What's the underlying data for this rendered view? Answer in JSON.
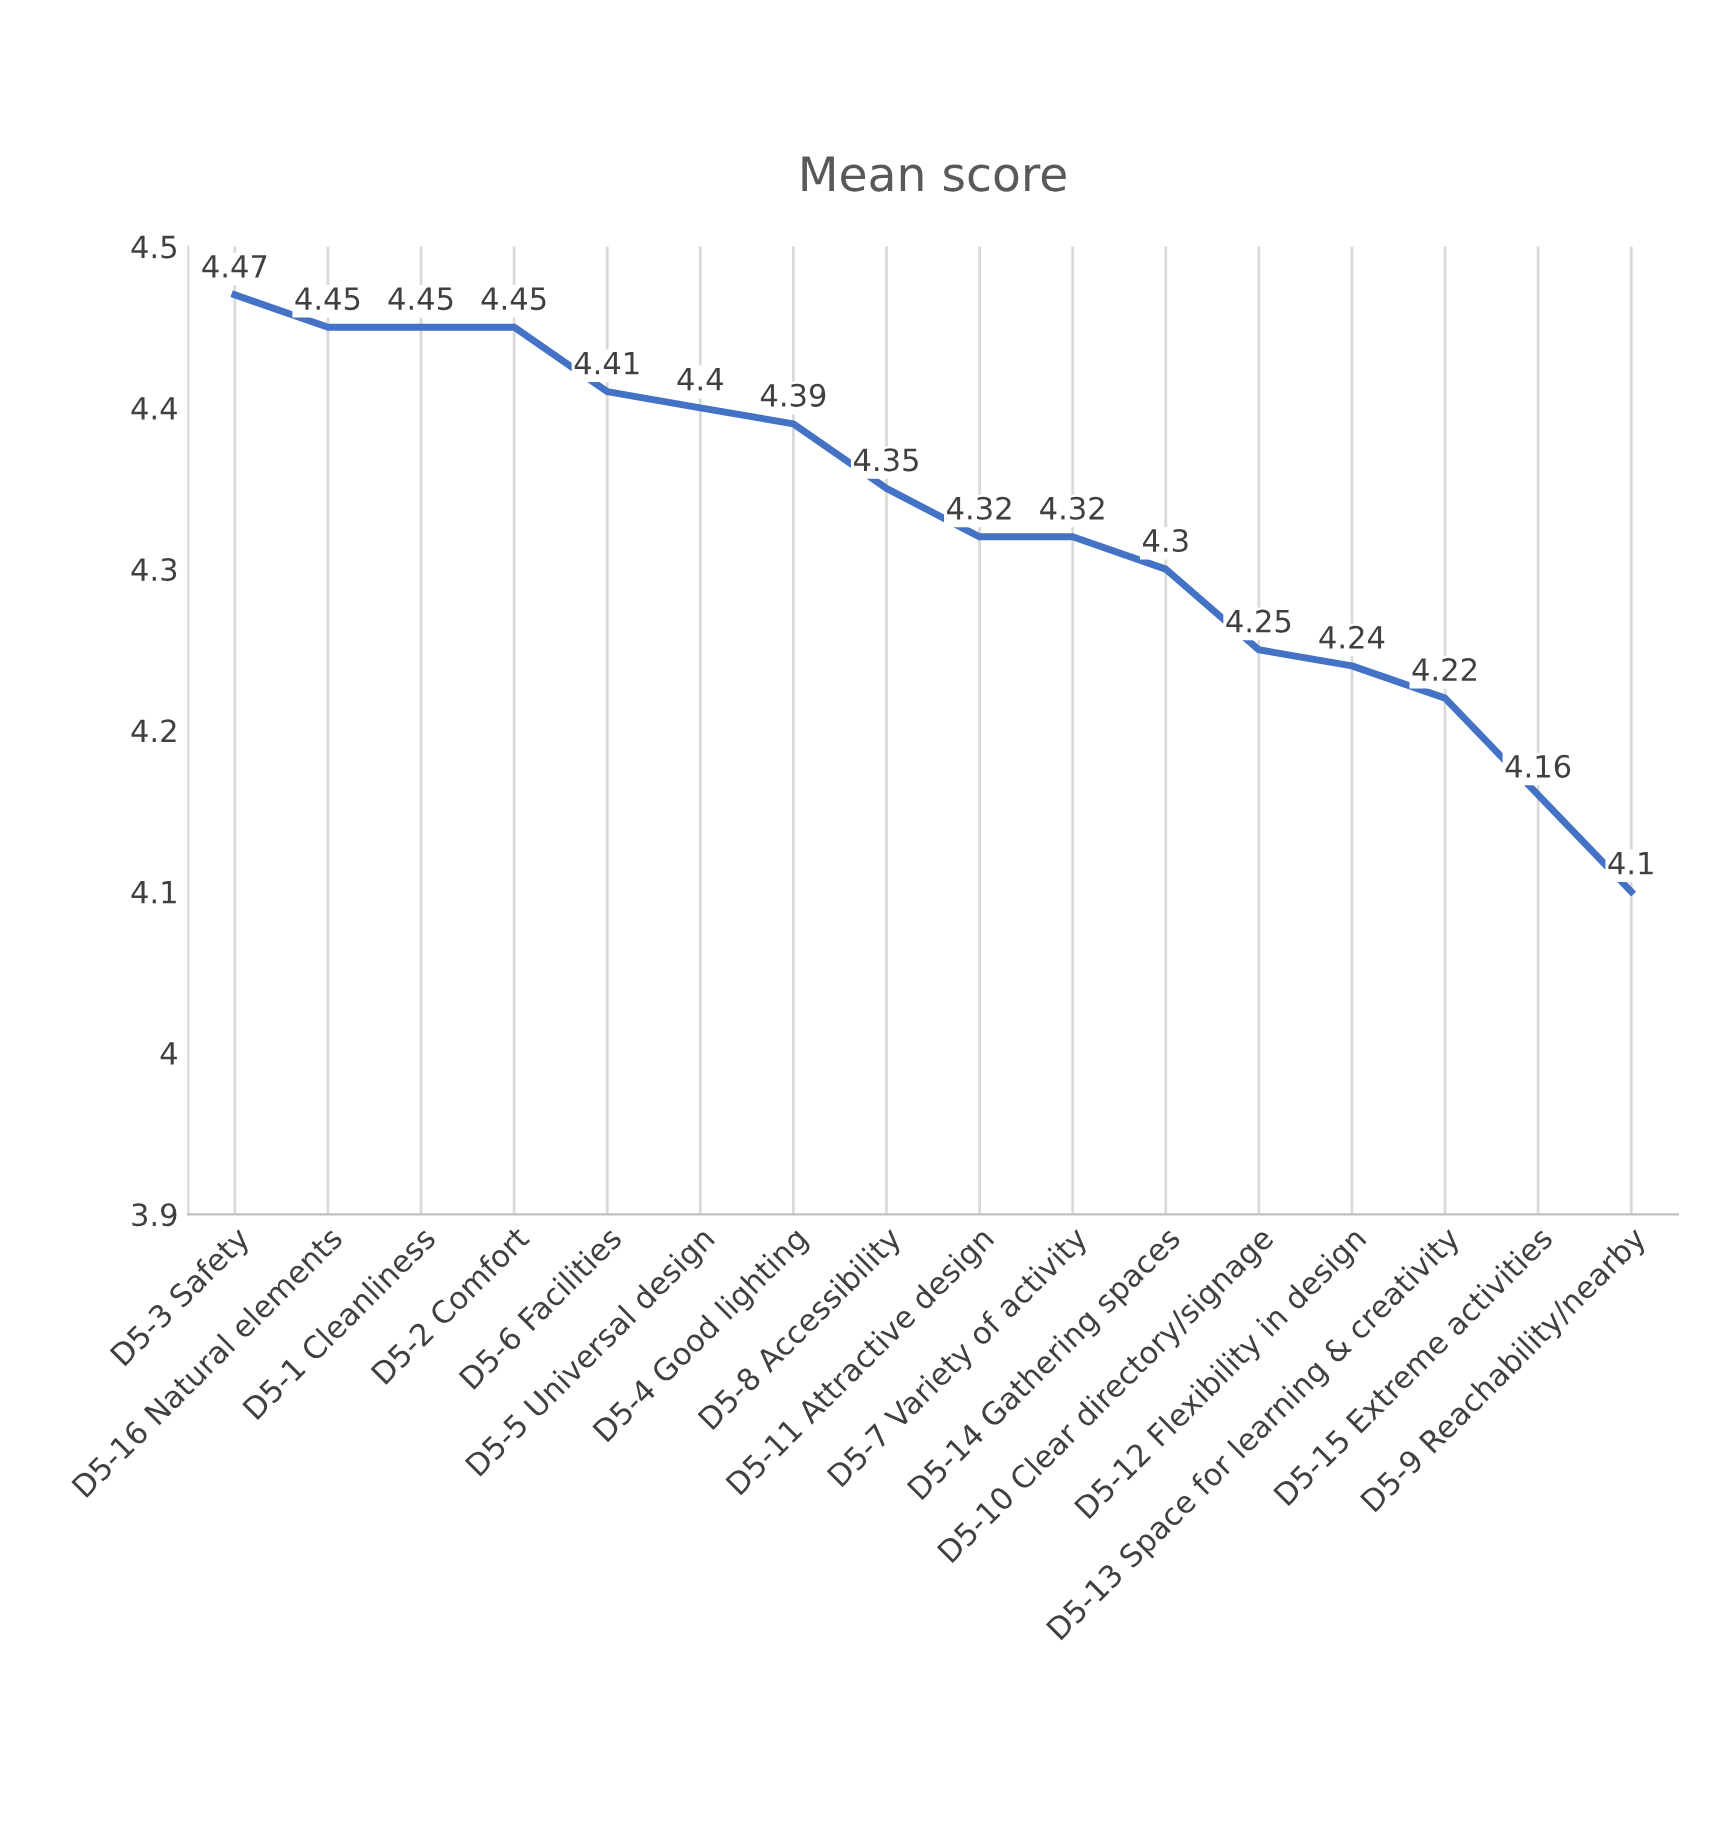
{
  "chart_data": {
    "type": "line",
    "title": "Mean score",
    "categories": [
      "D5-3 Safety",
      "D5-16 Natural elements",
      "D5-1 Cleanliness",
      "D5-2 Comfort",
      "D5-6 Facilities",
      "D5-5 Universal design",
      "D5-4 Good lighting",
      "D5-8 Accessibility",
      "D5-11 Attractive design",
      "D5-7 Variety of activity",
      "D5-14 Gathering spaces",
      "D5-10 Clear directory/signage",
      "D5-12 Flexibility in design",
      "D5-13 Space for learning & creativity",
      "D5-15 Extreme activities",
      "D5-9 Reachability/nearby"
    ],
    "series": [
      {
        "color": "#4472c4",
        "values": [
          4.47,
          4.45,
          4.45,
          4.45,
          4.41,
          4.4,
          4.39,
          4.35,
          4.32,
          4.32,
          4.3,
          4.25,
          4.24,
          4.22,
          4.16,
          4.1
        ]
      }
    ],
    "ylim": [
      3.9,
      4.5
    ],
    "yticks": [
      3.9,
      4,
      4.1,
      4.2,
      4.3,
      4.4,
      4.5
    ],
    "grid": "x",
    "data_labels": true,
    "marker": "none",
    "line_style": "solid"
  }
}
